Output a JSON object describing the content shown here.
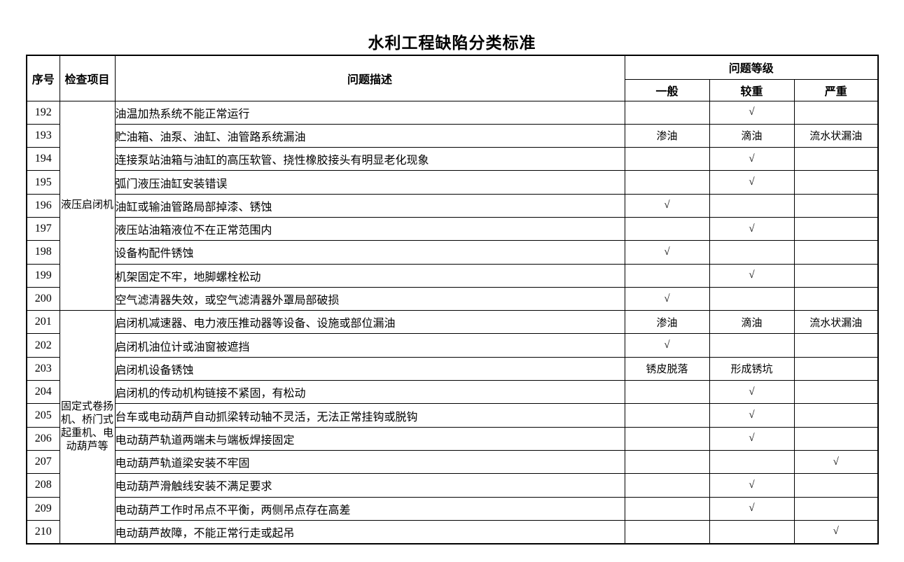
{
  "title": "水利工程缺陷分类标准",
  "table": {
    "headers": {
      "col_no": "序号",
      "col_item": "检查项目",
      "col_desc": "问题描述",
      "col_grade": "问题等级",
      "grade_general": "一般",
      "grade_moderate": "较重",
      "grade_severe": "严重"
    },
    "check_mark": "√",
    "categories": [
      {
        "label": "液压启闭机",
        "rowspan": 9
      },
      {
        "label": "固定式卷扬机、桥门式起重机、电动葫芦等",
        "rowspan": 10
      }
    ],
    "rows": [
      {
        "no": "192",
        "desc": "油温加热系统不能正常运行",
        "general": "",
        "moderate": "√",
        "severe": ""
      },
      {
        "no": "193",
        "desc": "贮油箱、油泵、油缸、油管路系统漏油",
        "general": "渗油",
        "moderate": "滴油",
        "severe": "流水状漏油"
      },
      {
        "no": "194",
        "desc": "连接泵站油箱与油缸的高压软管、挠性橡胶接头有明显老化现象",
        "general": "",
        "moderate": "√",
        "severe": ""
      },
      {
        "no": "195",
        "desc": "弧门液压油缸安装错误",
        "general": "",
        "moderate": "√",
        "severe": ""
      },
      {
        "no": "196",
        "desc": "油缸或输油管路局部掉漆、锈蚀",
        "general": "√",
        "moderate": "",
        "severe": ""
      },
      {
        "no": "197",
        "desc": "液压站油箱液位不在正常范围内",
        "general": "",
        "moderate": "√",
        "severe": ""
      },
      {
        "no": "198",
        "desc": "设备构配件锈蚀",
        "general": "√",
        "moderate": "",
        "severe": ""
      },
      {
        "no": "199",
        "desc": "机架固定不牢，地脚螺栓松动",
        "general": "",
        "moderate": "√",
        "severe": ""
      },
      {
        "no": "200",
        "desc": "空气滤清器失效，或空气滤清器外罩局部破损",
        "general": "√",
        "moderate": "",
        "severe": ""
      },
      {
        "no": "201",
        "desc": "启闭机减速器、电力液压推动器等设备、设施或部位漏油",
        "general": "渗油",
        "moderate": "滴油",
        "severe": "流水状漏油"
      },
      {
        "no": "202",
        "desc": "启闭机油位计或油窗被遮挡",
        "general": "√",
        "moderate": "",
        "severe": ""
      },
      {
        "no": "203",
        "desc": "启闭机设备锈蚀",
        "general": "锈皮脱落",
        "moderate": "形成锈坑",
        "severe": ""
      },
      {
        "no": "204",
        "desc": "启闭机的传动机构链接不紧固，有松动",
        "general": "",
        "moderate": "√",
        "severe": ""
      },
      {
        "no": "205",
        "desc": "台车或电动葫芦自动抓梁转动轴不灵活，无法正常挂钩或脱钩",
        "general": "",
        "moderate": "√",
        "severe": ""
      },
      {
        "no": "206",
        "desc": "电动葫芦轨道两端未与端板焊接固定",
        "general": "",
        "moderate": "√",
        "severe": ""
      },
      {
        "no": "207",
        "desc": "电动葫芦轨道梁安装不牢固",
        "general": "",
        "moderate": "",
        "severe": "√"
      },
      {
        "no": "208",
        "desc": "电动葫芦滑触线安装不满足要求",
        "general": "",
        "moderate": "√",
        "severe": ""
      },
      {
        "no": "209",
        "desc": "电动葫芦工作时吊点不平衡，两侧吊点存在高差",
        "general": "",
        "moderate": "√",
        "severe": ""
      },
      {
        "no": "210",
        "desc": "电动葫芦故障，不能正常行走或起吊",
        "general": "",
        "moderate": "",
        "severe": "√"
      }
    ]
  }
}
